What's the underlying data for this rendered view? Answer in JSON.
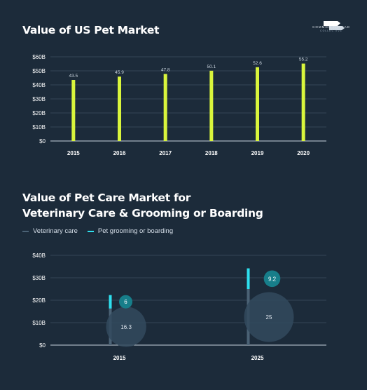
{
  "brand": {
    "name": "COMMON THREAD",
    "sub": "COLLECTIVE"
  },
  "colors": {
    "background": "#1c2b3a",
    "bar": "#d9f53c",
    "vet": "#4b6275",
    "groom": "#2ee0ef",
    "bubble_vet": "#324a5e",
    "bubble_groom": "#177e8a"
  },
  "chart_data": [
    {
      "type": "bar",
      "title": "Value of US Pet Market",
      "categories": [
        "2015",
        "2016",
        "2017",
        "2018",
        "2019",
        "2020"
      ],
      "values": [
        43.5,
        45.9,
        47.8,
        50.1,
        52.6,
        55.2
      ],
      "value_labels": [
        "43.5",
        "45.9",
        "47.8",
        "50.1",
        "52.6",
        "55.2"
      ],
      "yticks": [
        "$0",
        "$10B",
        "$20B",
        "$30B",
        "$40B",
        "$50B",
        "$60B"
      ],
      "ylim": [
        0,
        60
      ],
      "grid": true
    },
    {
      "type": "bar",
      "title": [
        "Value of Pet Care Market for",
        "Veterinary Care & Grooming or Boarding"
      ],
      "categories": [
        "2015",
        "2025"
      ],
      "series": [
        {
          "name": "Veterinary care",
          "values": [
            16.3,
            25
          ],
          "labels": [
            "16.3",
            "25"
          ]
        },
        {
          "name": "Pet grooming or boarding",
          "values": [
            6,
            9.2
          ],
          "labels": [
            "6",
            "9.2"
          ]
        }
      ],
      "yticks": [
        "$0",
        "$10B",
        "$20B",
        "$30B",
        "$40B"
      ],
      "ylim": [
        0,
        40
      ],
      "legend": "top-left",
      "grid": true
    }
  ]
}
